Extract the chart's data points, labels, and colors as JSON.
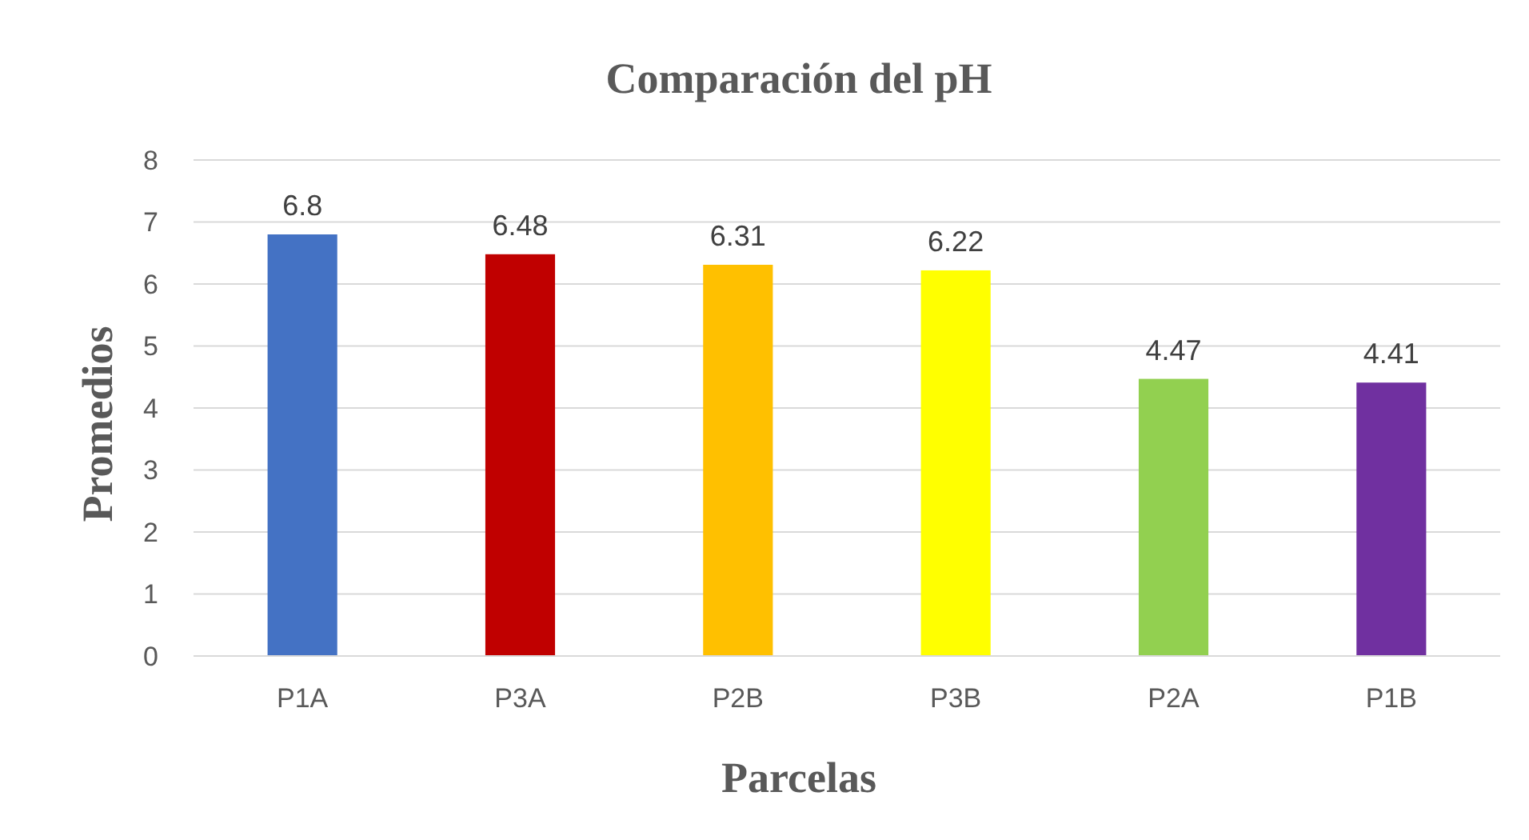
{
  "chart_data": {
    "type": "bar",
    "title": "Comparación del pH",
    "xlabel": "Parcelas",
    "ylabel": "Promedios",
    "categories": [
      "P1A",
      "P3A",
      "P2B",
      "P3B",
      "P2A",
      "P1B"
    ],
    "values": [
      6.8,
      6.48,
      6.31,
      6.22,
      4.47,
      4.41
    ],
    "colors": [
      "#4472c4",
      "#c00000",
      "#ffc000",
      "#ffff00",
      "#92d050",
      "#7030a0"
    ],
    "ylim": [
      0,
      8
    ],
    "yticks": [
      0,
      1,
      2,
      3,
      4,
      5,
      6,
      7,
      8
    ],
    "grid": "y",
    "data_labels": true
  }
}
